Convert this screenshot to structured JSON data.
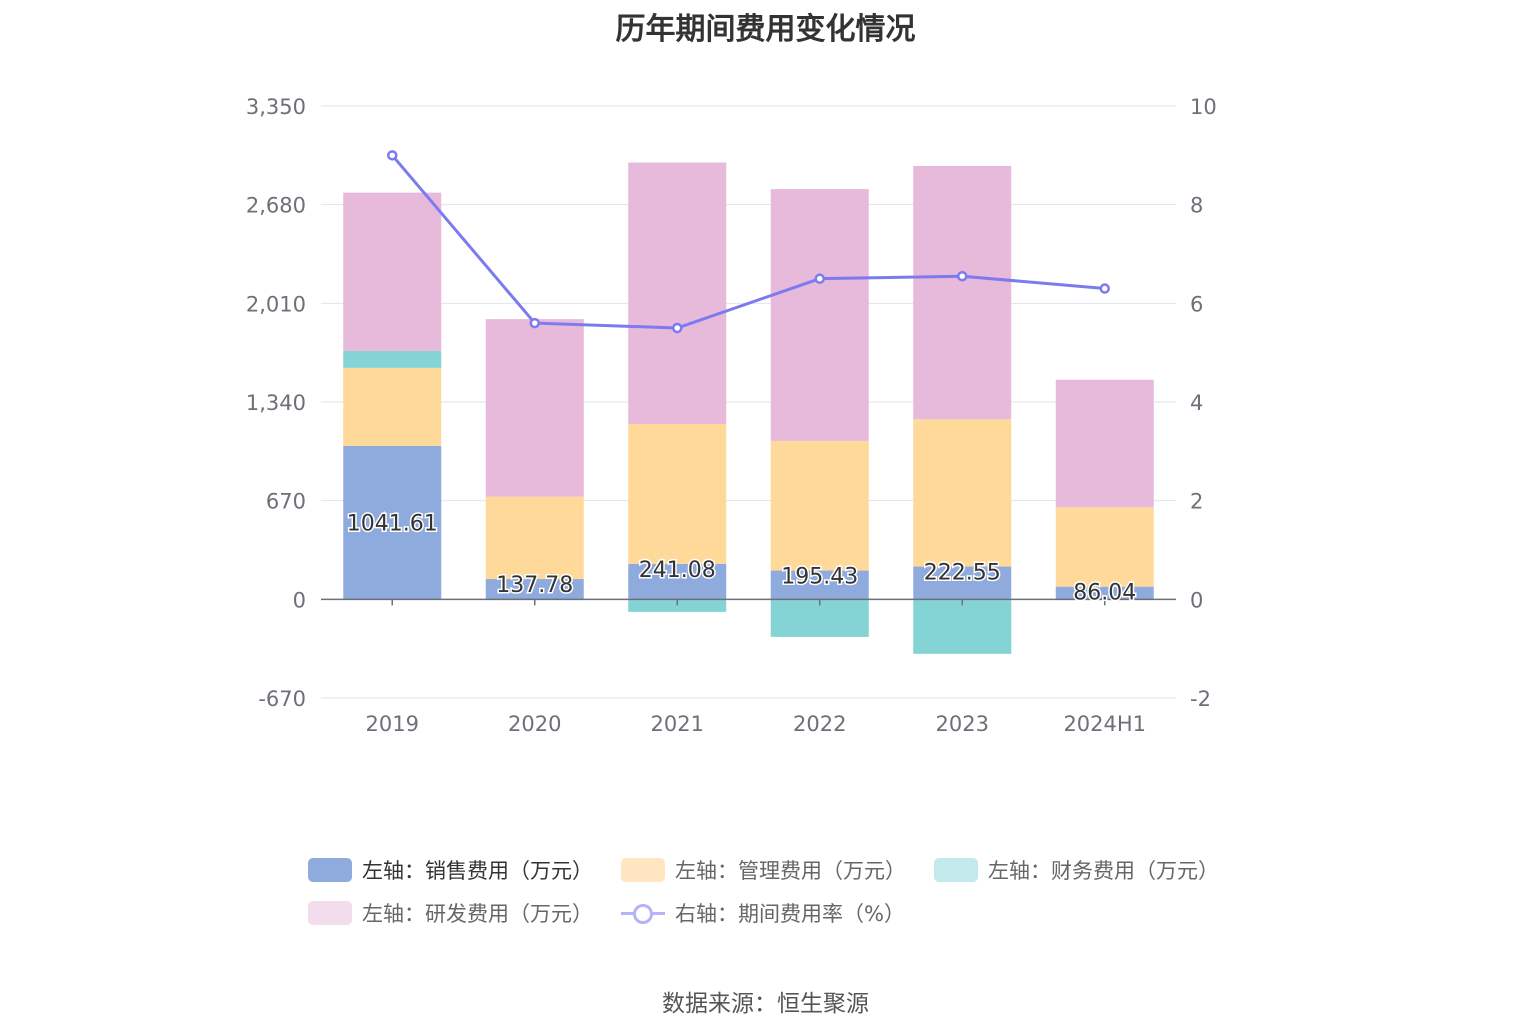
{
  "chart_data": {
    "type": "bar",
    "title": "历年期间费用变化情况",
    "categories": [
      "2019",
      "2020",
      "2021",
      "2022",
      "2023",
      "2024H1"
    ],
    "stacked": true,
    "y_left": {
      "ticks": [
        "3,350",
        "2,680",
        "2,010",
        "1,340",
        "670",
        "0",
        "-670"
      ],
      "ylim": [
        -670,
        3350
      ]
    },
    "y_right": {
      "ticks": [
        "10",
        "8",
        "6",
        "4",
        "2",
        "0",
        "-2"
      ],
      "ylim": [
        -2,
        10
      ]
    },
    "series": [
      {
        "name": "左轴：销售费用（万元）",
        "type": "bar",
        "color": "#8faadc",
        "values": [
          1041.61,
          137.78,
          241.08,
          195.43,
          222.55,
          86.04
        ],
        "labels": [
          "1041.61",
          "137.78",
          "241.08",
          "195.43",
          "222.55",
          "86.04"
        ]
      },
      {
        "name": "左轴：管理费用（万元）",
        "type": "bar",
        "color": "#ffd99a",
        "values": [
          530,
          560,
          950,
          880,
          1000,
          540
        ]
      },
      {
        "name": "左轴：财务费用（万元）",
        "type": "bar",
        "color": "#84d4d6",
        "values": [
          115,
          -5,
          -85,
          -255,
          -370,
          -5
        ]
      },
      {
        "name": "左轴：研发费用（万元）",
        "type": "bar",
        "color": "#e7b9da",
        "values": [
          1075,
          1205,
          1775,
          1710,
          1720,
          865
        ]
      },
      {
        "name": "右轴：期间费用率（%）",
        "type": "line",
        "axis": "right",
        "color": "#7b7bef",
        "values": [
          9.0,
          5.6,
          5.5,
          6.5,
          6.55,
          6.3
        ]
      }
    ],
    "grid": true,
    "legend_position": "bottom"
  },
  "legend": [
    {
      "label": "左轴：销售费用（万元）",
      "color": "#8faadc",
      "kind": "bar",
      "active": true
    },
    {
      "label": "左轴：管理费用（万元）",
      "color": "#ffe6c0",
      "kind": "bar",
      "active": false
    },
    {
      "label": "左轴：财务费用（万元）",
      "color": "#c4e9ea",
      "kind": "bar",
      "active": false
    },
    {
      "label": "左轴：研发费用（万元）",
      "color": "#f3dcec",
      "kind": "bar",
      "active": false
    },
    {
      "label": "右轴：期间费用率（%）",
      "color": "#b3b3f5",
      "kind": "line",
      "active": false
    }
  ],
  "source_text": "数据来源：恒生聚源"
}
